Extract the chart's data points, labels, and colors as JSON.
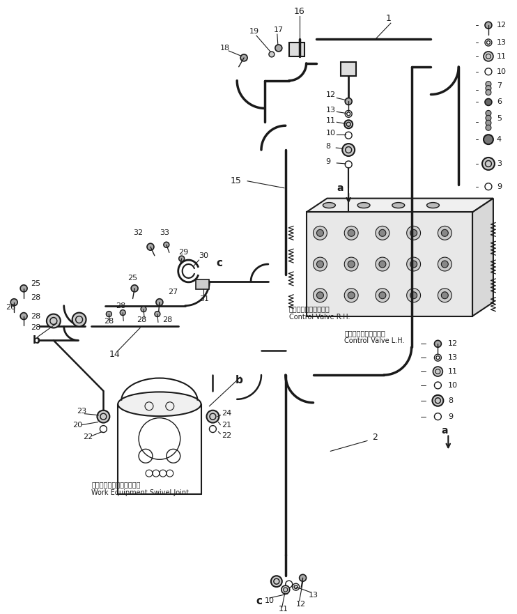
{
  "bg_color": "#ffffff",
  "line_color": "#1a1a1a",
  "fig_width": 7.42,
  "fig_height": 8.81,
  "dpi": 100,
  "labels": {
    "control_valve_rh_jp": "コントロールバルブ右",
    "control_valve_rh_en": "Control Valve R.H.",
    "control_valve_lh_jp": "コントロールバルブ左",
    "control_valve_lh_en": "Control Valve L.H.",
    "swivel_joint_jp": "作業機スイベルジョイント",
    "swivel_joint_en": "Work Equipment Swivel Joint"
  }
}
